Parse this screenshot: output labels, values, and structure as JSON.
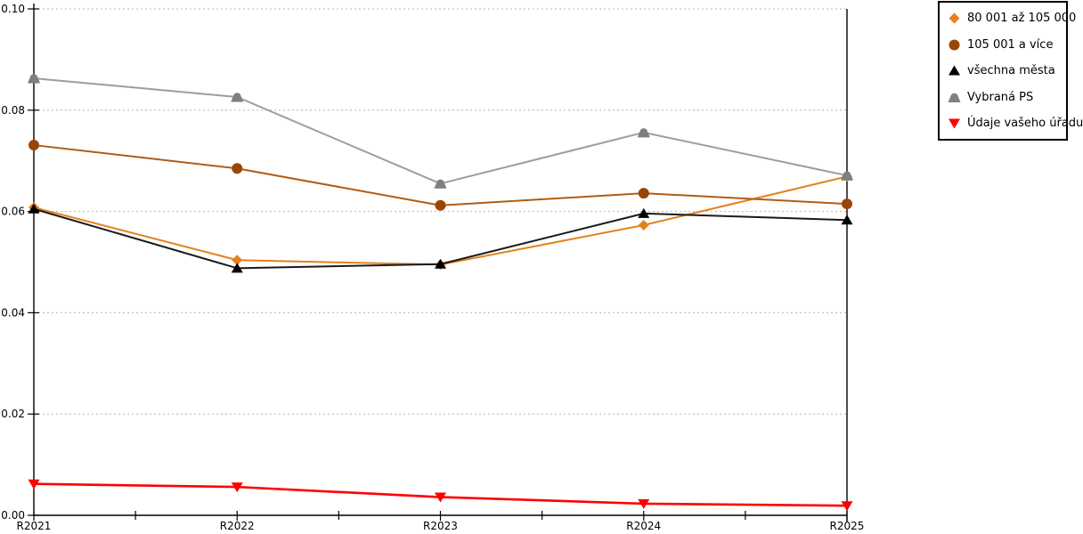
{
  "chart_data": {
    "type": "line",
    "title": "",
    "xlabel": "",
    "ylabel": "",
    "categories": [
      "R2021",
      "R2022",
      "R2023",
      "R2024",
      "R2025"
    ],
    "ylim": [
      0,
      0.1
    ],
    "yticks": [
      0.0,
      0.02,
      0.04,
      0.06,
      0.08,
      0.1
    ],
    "ytick_labels": [
      "0.00",
      "0.02",
      "0.04",
      "0.06",
      "0.08",
      "0.10"
    ],
    "grid": "dotted-horizontal",
    "legend_position": "top-right",
    "series": [
      {
        "name": "80 001 až 105 000",
        "marker": "diamond",
        "marker_color": "#e5801d",
        "line_color": "#e5801d",
        "values": [
          0.0608,
          0.0504,
          0.0495,
          0.0573,
          0.0669
        ]
      },
      {
        "name": "105 001 a více",
        "marker": "circle",
        "marker_color": "#9a4506",
        "line_color": "#b05c15",
        "values": [
          0.0731,
          0.0685,
          0.0612,
          0.0636,
          0.0615
        ]
      },
      {
        "name": "všechna města",
        "marker": "triangle-up",
        "marker_color": "#000000",
        "line_color": "#1a1a1a",
        "values": [
          0.0605,
          0.0488,
          0.0496,
          0.0596,
          0.0583
        ]
      },
      {
        "name": "Vybraná PS",
        "marker": "triangle-up-rounded",
        "marker_color": "#7f7f7f",
        "line_color": "#9d9d9d",
        "values": [
          0.0863,
          0.0826,
          0.0655,
          0.0756,
          0.0671
        ]
      },
      {
        "name": "Údaje vašeho úřadu",
        "marker": "triangle-down",
        "marker_color": "#fe0000",
        "line_color": "#fe0000",
        "values": [
          0.0062,
          0.0056,
          0.0036,
          0.0023,
          0.0019
        ]
      }
    ],
    "colors": {
      "gridline": "#b5b5b5",
      "axis": "#000000",
      "background": "#ffffff"
    }
  }
}
